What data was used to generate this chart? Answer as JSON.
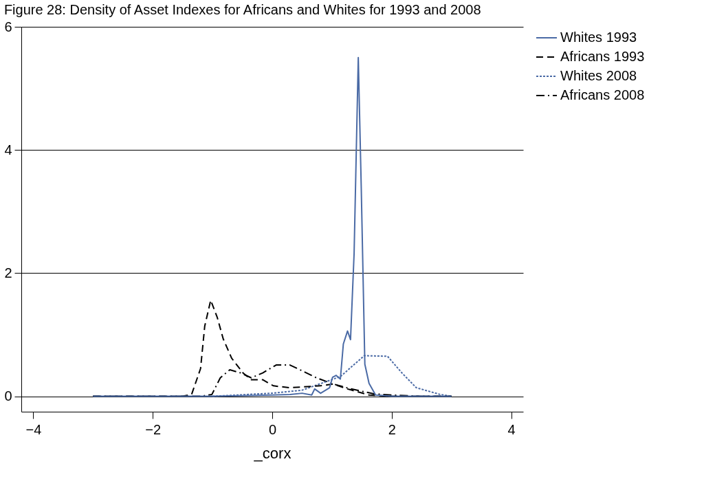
{
  "chart_data": {
    "type": "line",
    "title": "Figure 28: Density of Asset Indexes for Africans and Whites for 1993 and 2008",
    "xlabel": "_corx",
    "xlim": [
      -4.2,
      4.2
    ],
    "ylim": [
      -0.25,
      6
    ],
    "xticks": [
      -4,
      -2,
      0,
      2,
      4
    ],
    "yticks": [
      0,
      2,
      4,
      6
    ],
    "grid": "y",
    "legend": "right",
    "series": [
      {
        "name": "Whites 1993",
        "color": "#4a6aa5",
        "line_style": "solid",
        "x": [
          -3,
          -1,
          0,
          0.3,
          0.5,
          0.66,
          0.71,
          0.81,
          0.96,
          1.01,
          1.07,
          1.14,
          1.19,
          1.26,
          1.31,
          1.37,
          1.44,
          1.49,
          1.55,
          1.62,
          1.73,
          2,
          2.5,
          3
        ],
        "values": [
          0,
          0,
          0.02,
          0.03,
          0.05,
          0.02,
          0.12,
          0.05,
          0.14,
          0.31,
          0.34,
          0.28,
          0.85,
          1.06,
          0.92,
          2.32,
          5.5,
          3.37,
          0.52,
          0.21,
          0.02,
          0,
          0,
          0
        ]
      },
      {
        "name": "Africans 1993",
        "color": "#000000",
        "line_style": "dashed",
        "x": [
          -3,
          -1.5,
          -1.35,
          -1.2,
          -1.13,
          -1.03,
          -0.92,
          -0.82,
          -0.68,
          -0.49,
          -0.35,
          -0.16,
          0.02,
          0.29,
          0.8,
          1.02,
          1.26,
          1.62,
          2,
          3
        ],
        "values": [
          0,
          0,
          0.03,
          0.45,
          1.14,
          1.56,
          1.28,
          0.93,
          0.62,
          0.38,
          0.27,
          0.27,
          0.17,
          0.14,
          0.17,
          0.2,
          0.12,
          0.02,
          0,
          0
        ]
      },
      {
        "name": "Whites 2008",
        "color": "#4a6aa5",
        "line_style": "dotted",
        "x": [
          -1,
          0,
          0.5,
          1.14,
          1.54,
          1.93,
          2.17,
          2.41,
          2.81,
          3
        ],
        "values": [
          0,
          0.05,
          0.1,
          0.32,
          0.66,
          0.65,
          0.38,
          0.14,
          0.03,
          0
        ]
      },
      {
        "name": "Africans 2008",
        "color": "#000000",
        "line_style": "dashdot",
        "x": [
          -3,
          -1.2,
          -1.01,
          -0.87,
          -0.71,
          -0.53,
          -0.35,
          -0.16,
          0.07,
          0.29,
          0.51,
          0.74,
          1.02,
          1.32,
          1.7,
          2,
          2.5,
          3
        ],
        "values": [
          0,
          0,
          0.03,
          0.3,
          0.43,
          0.38,
          0.3,
          0.38,
          0.51,
          0.51,
          0.41,
          0.3,
          0.2,
          0.12,
          0.04,
          0.02,
          0,
          0
        ]
      }
    ]
  }
}
